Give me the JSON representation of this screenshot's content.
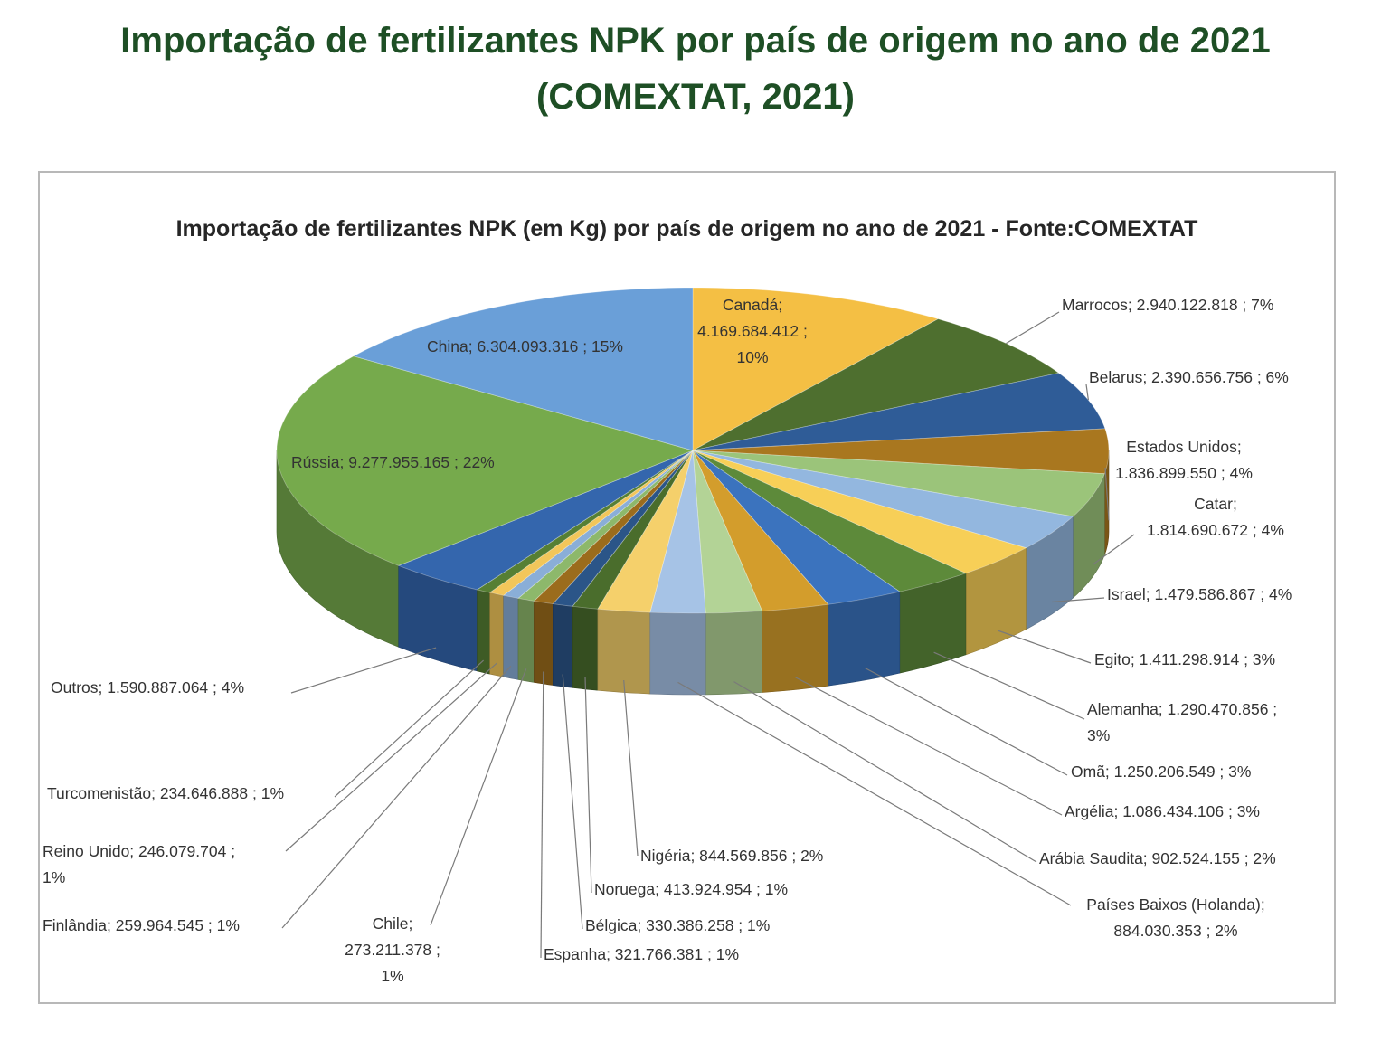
{
  "header": {
    "title_line1": "Importação de fertilizantes NPK por país de origem no ano de 2021",
    "title_line2": "(COMEXTAT, 2021)"
  },
  "chart_data": {
    "type": "pie",
    "title": "Importação de fertilizantes NPK (em Kg) por país de origem no ano de 2021 - Fonte:COMEXTAT",
    "unit": "Kg",
    "slices": [
      {
        "name": "Canadá",
        "value": 4169684412,
        "percent": "10%",
        "color": "#f4bf44",
        "label_lines": [
          "Canadá;",
          "4.169.684.412 ;",
          "10%"
        ]
      },
      {
        "name": "Marrocos",
        "value": 2940122818,
        "percent": "7%",
        "color": "#4e6f2f",
        "label_lines": [
          "Marrocos;  2.940.122.818 ; 7%"
        ]
      },
      {
        "name": "Belarus",
        "value": 2390656756,
        "percent": "6%",
        "color": "#2f5c97",
        "label_lines": [
          "Belarus;  2.390.656.756 ; 6%"
        ]
      },
      {
        "name": "Estados Unidos",
        "value": 1836899550,
        "percent": "4%",
        "color": "#a9771f",
        "label_lines": [
          "Estados Unidos;",
          "1.836.899.550 ; 4%"
        ]
      },
      {
        "name": "Catar",
        "value": 1814690672,
        "percent": "4%",
        "color": "#9bc47a",
        "label_lines": [
          "Catar;",
          "1.814.690.672 ; 4%"
        ]
      },
      {
        "name": "Israel",
        "value": 1479586867,
        "percent": "4%",
        "color": "#93b7df",
        "label_lines": [
          "Israel;  1.479.586.867 ; 4%"
        ]
      },
      {
        "name": "Egito",
        "value": 1411298914,
        "percent": "3%",
        "color": "#f7cf57",
        "label_lines": [
          "Egito;  1.411.298.914 ; 3%"
        ]
      },
      {
        "name": "Alemanha",
        "value": 1290470856,
        "percent": "3%",
        "color": "#5d8a3a",
        "label_lines": [
          "Alemanha;  1.290.470.856 ;",
          "3%"
        ]
      },
      {
        "name": "Omã",
        "value": 1250206549,
        "percent": "3%",
        "color": "#3b73be",
        "label_lines": [
          "Omã;  1.250.206.549 ; 3%"
        ]
      },
      {
        "name": "Argélia",
        "value": 1086434106,
        "percent": "3%",
        "color": "#d39d2c",
        "label_lines": [
          "Argélia;  1.086.434.106 ; 3%"
        ]
      },
      {
        "name": "Arábia Saudita",
        "value": 902524155,
        "percent": "2%",
        "color": "#b3d396",
        "label_lines": [
          "Arábia Saudita;  902.524.155 ; 2%"
        ]
      },
      {
        "name": "Países Baixos (Holanda)",
        "value": 884030353,
        "percent": "2%",
        "color": "#a6c3e6",
        "label_lines": [
          "Países Baixos (Holanda);",
          "884.030.353 ; 2%"
        ]
      },
      {
        "name": "Nigéria",
        "value": 844569856,
        "percent": "2%",
        "color": "#f5d06b",
        "label_lines": [
          "Nigéria;  844.569.856 ; 2%"
        ]
      },
      {
        "name": "Noruega",
        "value": 413924954,
        "percent": "1%",
        "color": "#4a6d2c",
        "label_lines": [
          "Noruega;  413.924.954 ; 1%"
        ]
      },
      {
        "name": "Bélgica",
        "value": 330386258,
        "percent": "1%",
        "color": "#2b5588",
        "label_lines": [
          "Bélgica;  330.386.258 ; 1%"
        ]
      },
      {
        "name": "Espanha",
        "value": 321766381,
        "percent": "1%",
        "color": "#9b6c1c",
        "label_lines": [
          "Espanha;  321.766.381 ; 1%"
        ]
      },
      {
        "name": "Chile",
        "value": 273211378,
        "percent": "1%",
        "color": "#8db86b",
        "label_lines": [
          "Chile;",
          "273.211.378 ;",
          "1%"
        ]
      },
      {
        "name": "Finlândia",
        "value": 259964545,
        "percent": "1%",
        "color": "#8aaed7",
        "label_lines": [
          "Finlândia;  259.964.545 ; 1%"
        ]
      },
      {
        "name": "Reino Unido",
        "value": 246079704,
        "percent": "1%",
        "color": "#f2c65a",
        "label_lines": [
          "Reino Unido;  246.079.704 ;",
          "1%"
        ]
      },
      {
        "name": "Turcomenistão",
        "value": 234646888,
        "percent": "1%",
        "color": "#567f34",
        "label_lines": [
          "Turcomenistão;  234.646.888 ; 1%"
        ]
      },
      {
        "name": "Outros",
        "value": 1590887064,
        "percent": "4%",
        "color": "#3466ad",
        "label_lines": [
          "Outros;  1.590.887.064 ; 4%"
        ]
      },
      {
        "name": "Rússia",
        "value": 9277955165,
        "percent": "22%",
        "color": "#76aa4c",
        "label_lines": [
          "Rússia;  9.277.955.165 ; 22%"
        ]
      },
      {
        "name": "China",
        "value": 6304093316,
        "percent": "15%",
        "color": "#6a9fd8",
        "label_lines": [
          "China;  6.304.093.316 ; 15%"
        ]
      }
    ],
    "legend": "none",
    "style": "3d-pie"
  }
}
